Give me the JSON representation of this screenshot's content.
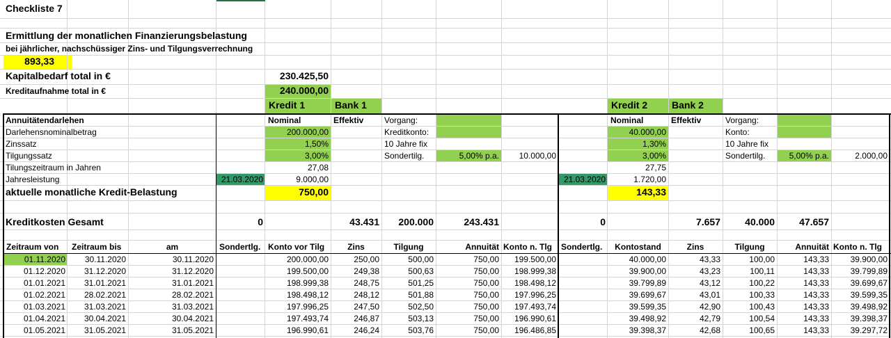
{
  "colors": {
    "green_fill": "#92d050",
    "yellow_fill": "#ffff00",
    "dark_green_fill": "#339966",
    "light_green_fill": "#92d050",
    "gridline": "#d4d4d4",
    "border": "#000000"
  },
  "header": {
    "title": "Checkliste 7",
    "heading": "Ermittlung der monatlichen Finanzierungsbelastung",
    "subheading": "bei jährlicher, nachschüssiger Zins- und Tilgungsverrechnung",
    "monthly_total": "893,33",
    "kapitalbedarf_label": "Kapitalbedarf total in €",
    "kapitalbedarf_value": "230.425,50",
    "kreditaufnahme_label": "Kreditaufnahme total in €",
    "kreditaufnahme_value": "240.000,00"
  },
  "labels": {
    "annuitaet": "Annuitätendarlehen",
    "nominalbetrag": "Darlehensnominalbetrag",
    "zinssatz": "Zinssatz",
    "tilgungssatz": "Tilgungssatz",
    "tilgungszeitraum": "Tilungszeitraum in Jahren",
    "jahresleistung": "Jahresleistung",
    "aktuelle_belastung": "aktuelle monatliche Kredit-Belastung",
    "kreditkosten": "Kreditkosten Gesamt"
  },
  "kredit1": {
    "title": "Kredit 1",
    "bank": "Bank 1",
    "nominal_header": "Nominal",
    "effektiv_header": "Effektiv",
    "nominalbetrag": "200.000,00",
    "zinssatz": "1,50%",
    "tilgungssatz": "3,00%",
    "tilgungszeitraum": "27,08",
    "jahresleistung": "9.000,00",
    "date": "21.03.2020",
    "belastung": "750,00",
    "vorgang_label": "Vorgang:",
    "konto_label": "Kreditkonto:",
    "fix_label": "10 Jahre fix",
    "sondertilg_label": "Sondertilg.",
    "sondertilg_rate": "5,00% p.a.",
    "sondertilg_amount": "10.000,00",
    "kosten_sondertilg": "0",
    "kosten_zins": "43.431",
    "kosten_tilgung": "200.000",
    "kosten_annuitaet": "243.431"
  },
  "kredit2": {
    "title": "Kredit 2",
    "bank": "Bank 2",
    "nominal_header": "Nominal",
    "effektiv_header": "Effektiv",
    "nominalbetrag": "40.000,00",
    "zinssatz": "1,30%",
    "tilgungssatz": "3,00%",
    "tilgungszeitraum": "27,75",
    "jahresleistung": "1.720,00",
    "date": "21.03.2020",
    "belastung": "143,33",
    "vorgang_label": "Vorgang:",
    "konto_label": "Konto:",
    "fix_label": "10 Jahre fix",
    "sondertilg_label": "Sondertilg.",
    "sondertilg_rate": "5,00% p.a.",
    "sondertilg_amount": "2.000,00",
    "kosten_sondertilg": "0",
    "kosten_zins": "7.657",
    "kosten_tilgung": "40.000",
    "kosten_annuitaet": "47.657"
  },
  "table_headers": {
    "zeitraum_von": "Zeitraum von",
    "zeitraum_bis": "Zeitraum bis",
    "am": "am",
    "sondertlg1": "Sondertlg.",
    "konto_vor_tilg": "Konto vor Tilg",
    "zins1": "Zins",
    "tilgung1": "Tilgung",
    "annuitaet1": "Annuität",
    "konto_n_tlg1": "Konto n. Tlg",
    "sondertlg2": "Sondertlg.",
    "kontostand": "Kontostand",
    "zins2": "Zins",
    "tilgung2": "Tilgung",
    "annuitaet2": "Annuität",
    "konto_n_tlg2": "Konto n. Tlg"
  },
  "rows": [
    {
      "von": "01.11.2020",
      "bis": "30.11.2020",
      "am": "30.11.2020",
      "k1_konto": "200.000,00",
      "k1_zins": "250,00",
      "k1_tilg": "500,00",
      "k1_ann": "750,00",
      "k1_nach": "199.500,00",
      "k2_konto": "40.000,00",
      "k2_zins": "43,33",
      "k2_tilg": "100,00",
      "k2_ann": "143,33",
      "k2_nach": "39.900,00"
    },
    {
      "von": "01.12.2020",
      "bis": "31.12.2020",
      "am": "31.12.2020",
      "k1_konto": "199.500,00",
      "k1_zins": "249,38",
      "k1_tilg": "500,63",
      "k1_ann": "750,00",
      "k1_nach": "198.999,38",
      "k2_konto": "39.900,00",
      "k2_zins": "43,23",
      "k2_tilg": "100,11",
      "k2_ann": "143,33",
      "k2_nach": "39.799,89"
    },
    {
      "von": "01.01.2021",
      "bis": "31.01.2021",
      "am": "31.01.2021",
      "k1_konto": "198.999,38",
      "k1_zins": "248,75",
      "k1_tilg": "501,25",
      "k1_ann": "750,00",
      "k1_nach": "198.498,12",
      "k2_konto": "39.799,89",
      "k2_zins": "43,12",
      "k2_tilg": "100,22",
      "k2_ann": "143,33",
      "k2_nach": "39.699,67"
    },
    {
      "von": "01.02.2021",
      "bis": "28.02.2021",
      "am": "28.02.2021",
      "k1_konto": "198.498,12",
      "k1_zins": "248,12",
      "k1_tilg": "501,88",
      "k1_ann": "750,00",
      "k1_nach": "197.996,25",
      "k2_konto": "39.699,67",
      "k2_zins": "43,01",
      "k2_tilg": "100,33",
      "k2_ann": "143,33",
      "k2_nach": "39.599,35"
    },
    {
      "von": "01.03.2021",
      "bis": "31.03.2021",
      "am": "31.03.2021",
      "k1_konto": "197.996,25",
      "k1_zins": "247,50",
      "k1_tilg": "502,50",
      "k1_ann": "750,00",
      "k1_nach": "197.493,74",
      "k2_konto": "39.599,35",
      "k2_zins": "42,90",
      "k2_tilg": "100,43",
      "k2_ann": "143,33",
      "k2_nach": "39.498,92"
    },
    {
      "von": "01.04.2021",
      "bis": "30.04.2021",
      "am": "30.04.2021",
      "k1_konto": "197.493,74",
      "k1_zins": "246,87",
      "k1_tilg": "503,13",
      "k1_ann": "750,00",
      "k1_nach": "196.990,61",
      "k2_konto": "39.498,92",
      "k2_zins": "42,79",
      "k2_tilg": "100,54",
      "k2_ann": "143,33",
      "k2_nach": "39.398,37"
    },
    {
      "von": "01.05.2021",
      "bis": "31.05.2021",
      "am": "31.05.2021",
      "k1_konto": "196.990,61",
      "k1_zins": "246,24",
      "k1_tilg": "503,76",
      "k1_ann": "750,00",
      "k1_nach": "196.486,85",
      "k2_konto": "39.398,37",
      "k2_zins": "42,68",
      "k2_tilg": "100,65",
      "k2_ann": "143,33",
      "k2_nach": "39.297,72"
    }
  ]
}
